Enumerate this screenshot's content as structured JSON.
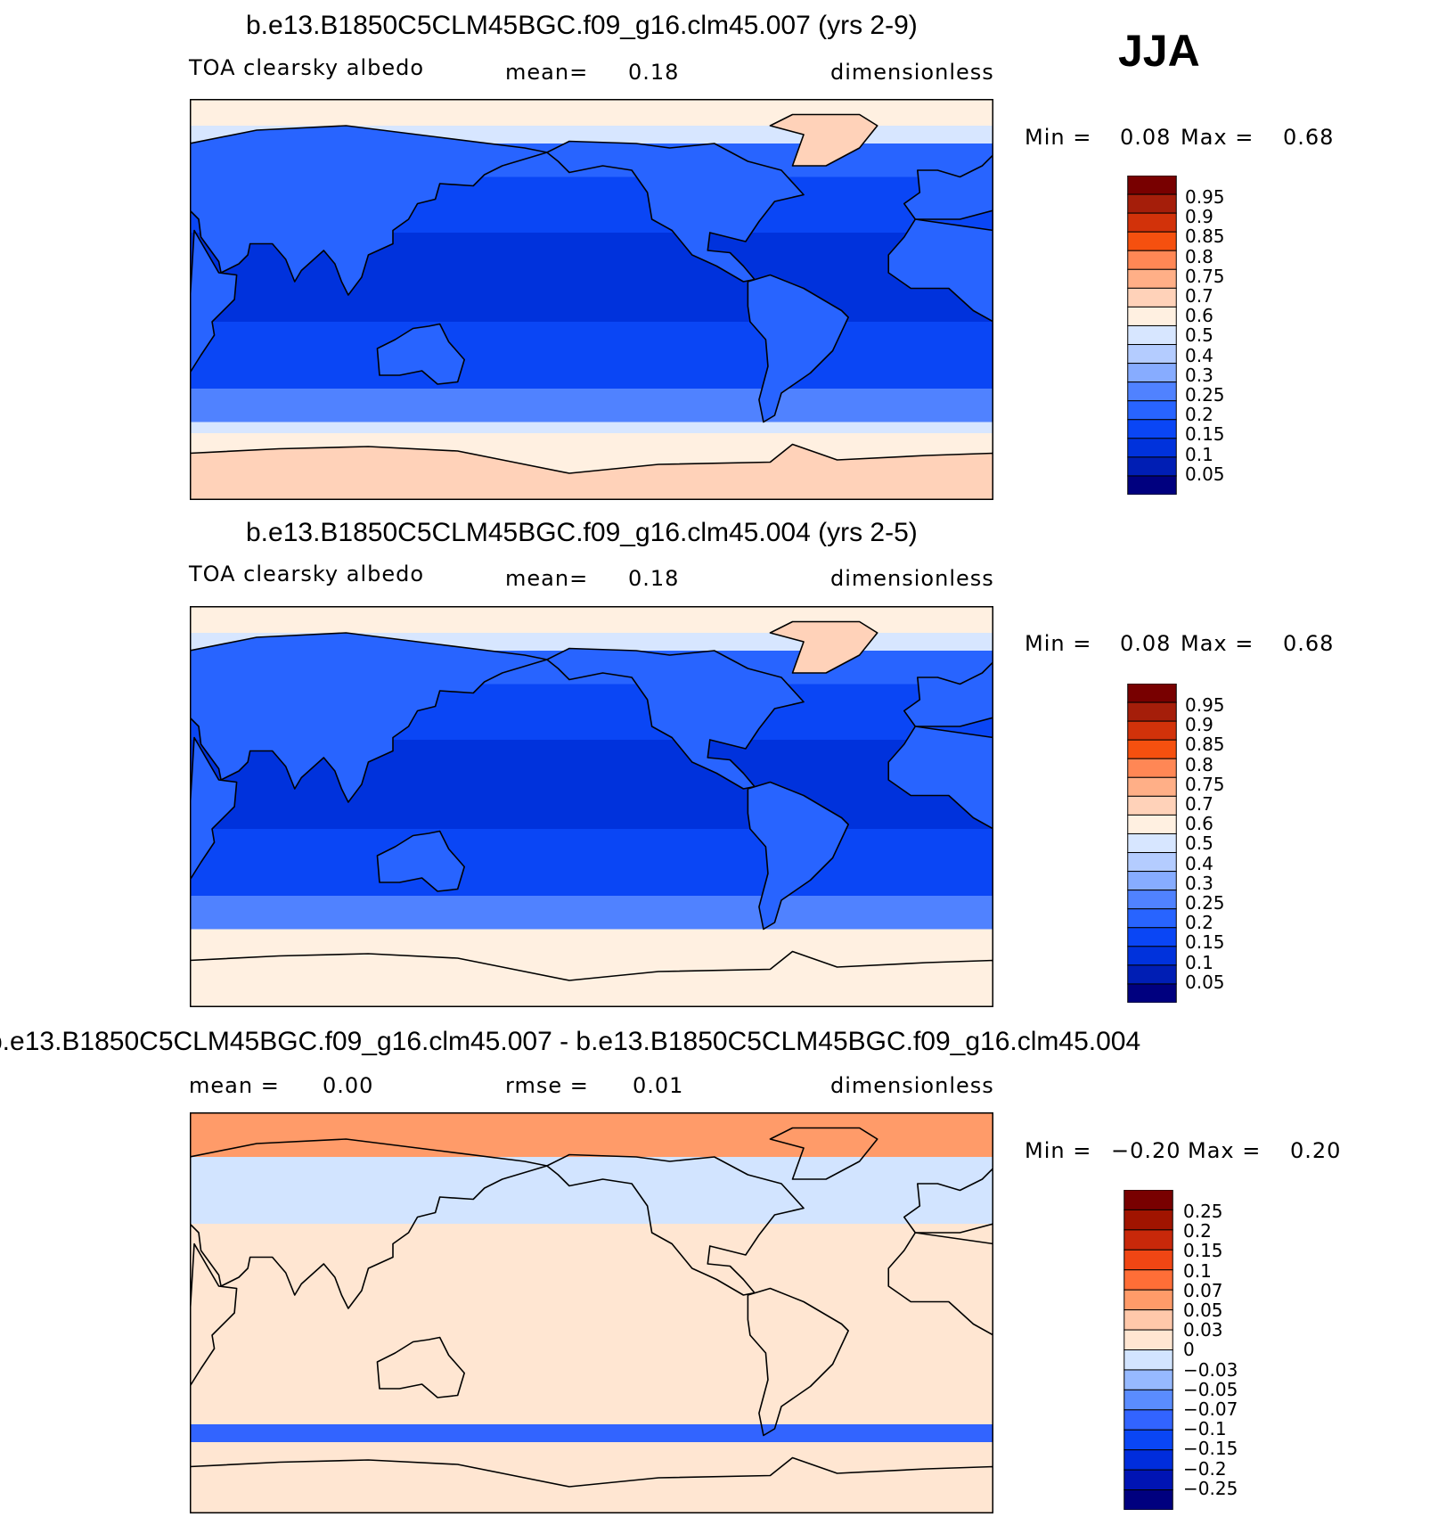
{
  "season": "JJA",
  "colors": {
    "seq": [
      "#00007f",
      "#001eb4",
      "#0032dc",
      "#0a46f5",
      "#2864ff",
      "#5082ff",
      "#87acff",
      "#b4ccff",
      "#d7e6ff",
      "#fff0e1",
      "#ffd2b9",
      "#ffaf87",
      "#ff8755",
      "#f5500f",
      "#d2320a",
      "#a51e0a",
      "#780000"
    ],
    "diff": [
      "#00007f",
      "#0014b4",
      "#002ddc",
      "#0a46f5",
      "#3264ff",
      "#5a8cff",
      "#96b9ff",
      "#d2e4ff",
      "#ffe6d2",
      "#ffc8aa",
      "#ff9b69",
      "#ff6e37",
      "#f04614",
      "#c8280a",
      "#a01400",
      "#780000"
    ],
    "land_outline": "#000000"
  },
  "chart_data": [
    {
      "type": "heatmap",
      "title": "b.e13.B1850C5CLM45BGC.f09_g16.clm45.007 (yrs 2-9)",
      "variable": "TOA clearsky albedo",
      "mean_label": "mean=",
      "mean_value": "0.18",
      "units": "dimensionless",
      "min_label": "Min =",
      "min_value": "0.08",
      "max_label": "Max =",
      "max_value": "0.68",
      "zonal_bands": [
        {
          "lat_from": 90,
          "lat_to": 78,
          "value": 0.55
        },
        {
          "lat_from": 78,
          "lat_to": 70,
          "value": 0.45
        },
        {
          "lat_from": 70,
          "lat_to": 55,
          "value": 0.18
        },
        {
          "lat_from": 55,
          "lat_to": 30,
          "value": 0.13
        },
        {
          "lat_from": 30,
          "lat_to": -10,
          "value": 0.08
        },
        {
          "lat_from": -10,
          "lat_to": -40,
          "value": 0.13
        },
        {
          "lat_from": -40,
          "lat_to": -55,
          "value": 0.2
        },
        {
          "lat_from": -55,
          "lat_to": -60,
          "value": 0.4
        },
        {
          "lat_from": -60,
          "lat_to": -90,
          "value": 0.55
        }
      ],
      "colorbar_labels": [
        "0.95",
        "0.9",
        "0.85",
        "0.8",
        "0.75",
        "0.7",
        "0.6",
        "0.5",
        "0.4",
        "0.3",
        "0.25",
        "0.2",
        "0.15",
        "0.1",
        "0.05"
      ]
    },
    {
      "type": "heatmap",
      "title": "b.e13.B1850C5CLM45BGC.f09_g16.clm45.004 (yrs 2-5)",
      "variable": "TOA clearsky albedo",
      "mean_label": "mean=",
      "mean_value": "0.18",
      "units": "dimensionless",
      "min_label": "Min =",
      "min_value": "0.08",
      "max_label": "Max =",
      "max_value": "0.68",
      "zonal_bands": [
        {
          "lat_from": 90,
          "lat_to": 78,
          "value": 0.55
        },
        {
          "lat_from": 78,
          "lat_to": 70,
          "value": 0.45
        },
        {
          "lat_from": 70,
          "lat_to": 55,
          "value": 0.18
        },
        {
          "lat_from": 55,
          "lat_to": 30,
          "value": 0.13
        },
        {
          "lat_from": 30,
          "lat_to": -10,
          "value": 0.08
        },
        {
          "lat_from": -10,
          "lat_to": -40,
          "value": 0.13
        },
        {
          "lat_from": -40,
          "lat_to": -55,
          "value": 0.2
        },
        {
          "lat_from": -55,
          "lat_to": -60,
          "value": 0.55
        },
        {
          "lat_from": -60,
          "lat_to": -90,
          "value": 0.5
        }
      ],
      "colorbar_labels": [
        "0.95",
        "0.9",
        "0.85",
        "0.8",
        "0.75",
        "0.7",
        "0.6",
        "0.5",
        "0.4",
        "0.3",
        "0.25",
        "0.2",
        "0.15",
        "0.1",
        "0.05"
      ]
    },
    {
      "type": "heatmap",
      "title": "b.e13.B1850C5CLM45BGC.f09_g16.clm45.007 - b.e13.B1850C5CLM45BGC.f09_g16.clm45.004",
      "mean_label": "mean =",
      "mean_value": "0.00",
      "rmse_label": "rmse =",
      "rmse_value": "0.01",
      "units": "dimensionless",
      "min_label": "Min =",
      "min_value": "−0.20",
      "max_label": "Max =",
      "max_value": "0.20",
      "zonal_bands": [
        {
          "lat_from": 90,
          "lat_to": 70,
          "value": 0.05
        },
        {
          "lat_from": 70,
          "lat_to": 40,
          "value": -0.01
        },
        {
          "lat_from": 40,
          "lat_to": -50,
          "value": 0.01
        },
        {
          "lat_from": -50,
          "lat_to": -58,
          "value": -0.1
        },
        {
          "lat_from": -58,
          "lat_to": -90,
          "value": 0.01
        }
      ],
      "colorbar_labels": [
        "0.25",
        "0.2",
        "0.15",
        "0.1",
        "0.07",
        "0.05",
        "0.03",
        "0",
        "−0.03",
        "−0.05",
        "−0.07",
        "−0.1",
        "−0.15",
        "−0.2",
        "−0.25"
      ]
    }
  ]
}
